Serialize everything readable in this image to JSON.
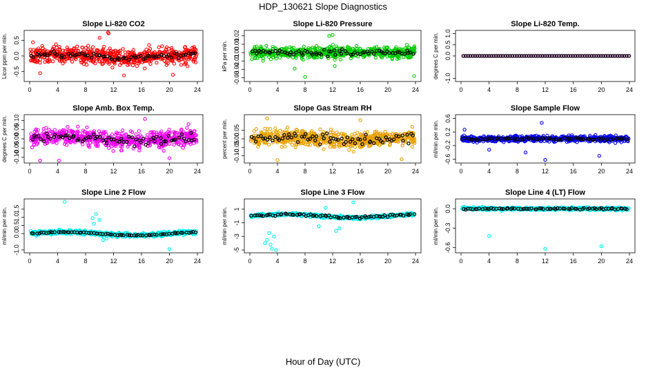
{
  "page": {
    "title": "HDP_130621  Slope Diagnostics",
    "xlabel": "Hour of Day (UTC)"
  },
  "chart_data": [
    {
      "type": "scatter",
      "title": "Slope Li-820 CO2",
      "ylabel": "Licor ppm per min.",
      "color": "#ff0000",
      "xlim": [
        0,
        24
      ],
      "ylim": [
        -0.75,
        0.75
      ],
      "yticks": [
        "-0.5",
        "0.0",
        "0.5"
      ],
      "ytick_values": [
        -0.5,
        0,
        0.5
      ],
      "xticks": [
        0,
        4,
        8,
        12,
        16,
        20,
        24
      ],
      "spread": 0.42,
      "mean_amp": 0.05,
      "outliers": [
        [
          11.2,
          0.75
        ],
        [
          11.3,
          0.72
        ],
        [
          10.0,
          0.58
        ],
        [
          13.5,
          -0.62
        ],
        [
          1.5,
          -0.55
        ],
        [
          20.5,
          -0.6
        ]
      ],
      "black_spread": 0.15
    },
    {
      "type": "scatter",
      "title": "Slope Li-820 Pressure",
      "ylabel": "kPa per min.",
      "color": "#00cc00",
      "xlim": [
        0,
        24
      ],
      "ylim": [
        -0.032,
        0.024
      ],
      "yticks": [
        "-0.03",
        "-0.02",
        "-0.01",
        "0.00",
        "0.01",
        "0.02"
      ],
      "ytick_values": [
        -0.03,
        -0.02,
        -0.01,
        0,
        0.01,
        0.02
      ],
      "xticks": [
        0,
        4,
        8,
        12,
        16,
        20,
        24
      ],
      "spread": 0.011,
      "mean_amp": 0.0,
      "outliers": [
        [
          12.0,
          0.021
        ],
        [
          11.5,
          0.02
        ],
        [
          8.0,
          -0.029
        ],
        [
          23.8,
          -0.028
        ],
        [
          6.5,
          -0.019
        ],
        [
          12.3,
          -0.016
        ]
      ],
      "black_spread": 0.005
    },
    {
      "type": "scatter",
      "title": "Slope Li-820 Temp.",
      "ylabel": "degrees C per min.",
      "color": "#dd00dd",
      "xlim": [
        0,
        24
      ],
      "ylim": [
        -1.05,
        1.05
      ],
      "yticks": [
        "-1.0",
        "0.0",
        "0.5",
        "1.0"
      ],
      "ytick_values": [
        -1,
        0,
        0.5,
        1
      ],
      "xticks": [
        0,
        4,
        8,
        12,
        16,
        20,
        24
      ],
      "spread": 0.0,
      "mean_amp": 0.0,
      "outliers": [],
      "black_spread": 0.0
    },
    {
      "type": "scatter",
      "title": "Slope Amb. Box Temp.",
      "ylabel": "degrees C per min.",
      "color": "#ee00ee",
      "xlim": [
        0,
        24
      ],
      "ylim": [
        -0.12,
        0.12
      ],
      "yticks": [
        "-0.10",
        "-0.05",
        "0.00",
        "0.05",
        "0.10"
      ],
      "ytick_values": [
        -0.1,
        -0.05,
        0,
        0.05,
        0.1
      ],
      "xticks": [
        0,
        4,
        8,
        12,
        16,
        20,
        24
      ],
      "spread": 0.07,
      "mean_amp": 0.01,
      "outliers": [
        [
          1.5,
          -0.118
        ],
        [
          4.2,
          -0.118
        ],
        [
          16.5,
          0.108
        ],
        [
          20.0,
          -0.105
        ]
      ],
      "black_spread": 0.04
    },
    {
      "type": "scatter",
      "title": "Slope Gas Stream RH",
      "ylabel": "percent per min.",
      "color": "#e8a000",
      "xlim": [
        0,
        24
      ],
      "ylim": [
        -0.13,
        0.13
      ],
      "yticks": [
        "-0.10",
        "-0.05",
        "0.00",
        "0.05"
      ],
      "ytick_values": [
        -0.1,
        -0.05,
        0,
        0.05
      ],
      "xticks": [
        0,
        4,
        8,
        12,
        16,
        20,
        24
      ],
      "spread": 0.07,
      "mean_amp": 0.01,
      "outliers": [
        [
          2.5,
          0.12
        ],
        [
          16.0,
          0.11
        ],
        [
          4.0,
          -0.125
        ],
        [
          22.0,
          -0.12
        ]
      ],
      "black_spread": 0.05
    },
    {
      "type": "scatter",
      "title": "Slope Sample Flow",
      "ylabel": "ml/min per min.",
      "color": "#0000ee",
      "xlim": [
        0,
        24
      ],
      "ylim": [
        -0.65,
        0.65
      ],
      "yticks": [
        "-0.6",
        "-0.2",
        "0.2",
        "0.6"
      ],
      "ytick_values": [
        -0.6,
        -0.2,
        0.2,
        0.6
      ],
      "xticks": [
        0,
        4,
        8,
        12,
        16,
        20,
        24
      ],
      "spread": 0.13,
      "mean_amp": 0.0,
      "outliers": [
        [
          12.0,
          -0.62
        ],
        [
          11.5,
          0.47
        ],
        [
          0.5,
          0.27
        ],
        [
          19.7,
          -0.5
        ],
        [
          4.0,
          -0.32
        ],
        [
          9.2,
          -0.4
        ]
      ],
      "black_spread": 0.05
    },
    {
      "type": "scatter",
      "title": "Slope Line 2 Flow",
      "ylabel": "ml/min per min.",
      "color": "#00eeee",
      "xlim": [
        0,
        24
      ],
      "ylim": [
        -1.05,
        2.0
      ],
      "yticks": [
        "-1.0",
        "0.0",
        "0.5",
        "1.0",
        "1.5"
      ],
      "ytick_values": [
        -1,
        0,
        0.5,
        1,
        1.5
      ],
      "xticks": [
        0,
        4,
        8,
        12,
        16,
        20,
        24
      ],
      "spread": 0.2,
      "mean_amp": 0.1,
      "outliers": [
        [
          5.0,
          1.95
        ],
        [
          20.0,
          -0.95
        ],
        [
          9.5,
          1.2
        ],
        [
          9.0,
          0.95
        ],
        [
          10.0,
          0.85
        ],
        [
          10.5,
          -0.4
        ],
        [
          11.0,
          -0.3
        ],
        [
          9.2,
          0.6
        ]
      ],
      "black_spread": 0.05
    },
    {
      "type": "scatter",
      "title": "Slope Line 3 Flow",
      "ylabel": "ml/min per min.",
      "color": "#00eeee",
      "xlim": [
        0,
        24
      ],
      "ylim": [
        -5.1,
        2.2
      ],
      "yticks": [
        "-5",
        "-3",
        "-1",
        "1"
      ],
      "ytick_values": [
        -5,
        -3,
        -1,
        1
      ],
      "xticks": [
        0,
        4,
        8,
        12,
        16,
        20,
        24
      ],
      "spread": 0.35,
      "mean_amp": 0.25,
      "outliers": [
        [
          2.5,
          -3.5
        ],
        [
          3.0,
          -4.2
        ],
        [
          3.2,
          -4.8
        ],
        [
          2.8,
          -2.5
        ],
        [
          3.5,
          -3.0
        ],
        [
          3.8,
          -5.0
        ],
        [
          2.2,
          -4.0
        ],
        [
          11.0,
          1.2
        ],
        [
          15.0,
          2.0
        ],
        [
          10.0,
          -1.5
        ],
        [
          12.5,
          -2.2
        ],
        [
          13.0,
          -1.8
        ]
      ],
      "black_spread": 0.25
    },
    {
      "type": "scatter",
      "title": "Slope Line 4 (LT) Flow",
      "ylabel": "ml/min per min.",
      "color": "#00eeee",
      "xlim": [
        0,
        24
      ],
      "ylim": [
        -0.65,
        0.12
      ],
      "yticks": [
        "-0.6",
        "-0.3",
        "0.0"
      ],
      "ytick_values": [
        -0.6,
        -0.3,
        0
      ],
      "xticks": [
        0,
        4,
        8,
        12,
        16,
        20,
        24
      ],
      "spread": 0.035,
      "mean_amp": 0.0,
      "outliers": [
        [
          4.0,
          -0.42
        ],
        [
          12.0,
          -0.62
        ],
        [
          20.0,
          -0.58
        ]
      ],
      "black_spread": 0.02
    }
  ]
}
